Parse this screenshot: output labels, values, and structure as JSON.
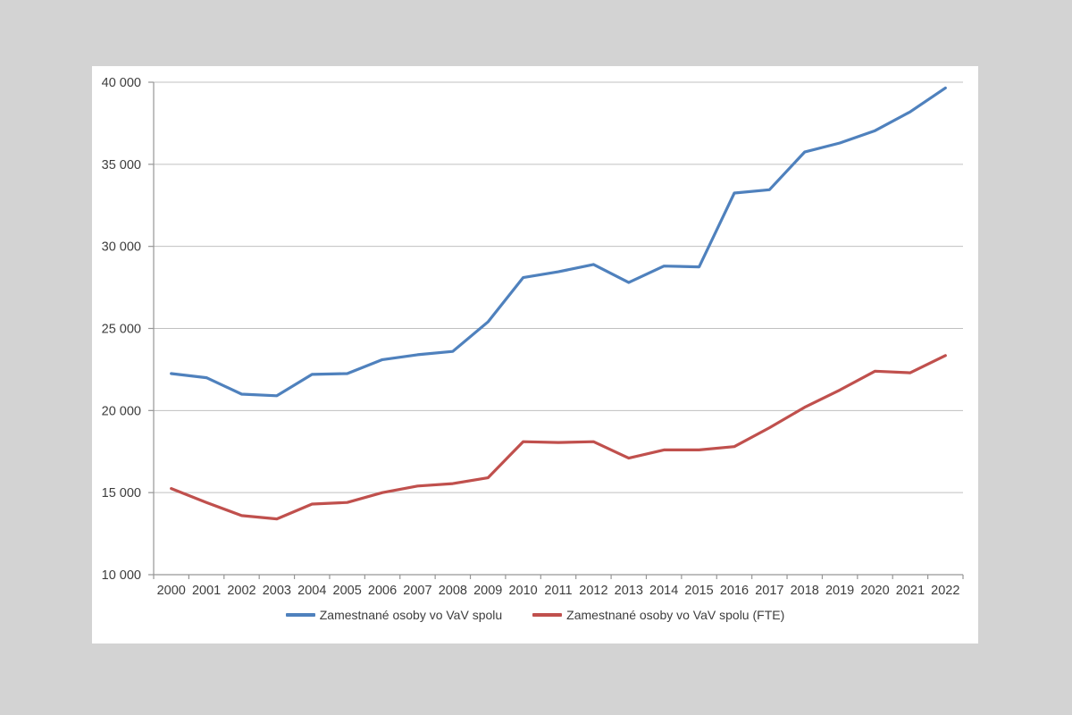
{
  "window": {
    "backdrop_color": "#d3d3d3",
    "panel_color": "#ffffff"
  },
  "chart_data": {
    "type": "line",
    "title": "",
    "xlabel": "",
    "ylabel": "",
    "x": [
      "2000",
      "2001",
      "2002",
      "2003",
      "2004",
      "2005",
      "2006",
      "2007",
      "2008",
      "2009",
      "2010",
      "2011",
      "2012",
      "2013",
      "2014",
      "2015",
      "2016",
      "2017",
      "2018",
      "2019",
      "2020",
      "2021",
      "2022"
    ],
    "series": [
      {
        "name": "Zamestnané osoby vo VaV spolu",
        "color": "#4F81BD",
        "values": [
          22250,
          22000,
          21000,
          20900,
          22200,
          22250,
          23100,
          23400,
          23600,
          25400,
          28100,
          28450,
          28900,
          27800,
          28800,
          28750,
          33250,
          33450,
          35750,
          36300,
          37050,
          38200,
          39650
        ]
      },
      {
        "name": "Zamestnané osoby vo VaV spolu (FTE)",
        "color": "#C0504D",
        "values": [
          15250,
          14400,
          13600,
          13400,
          14300,
          14400,
          15000,
          15400,
          15550,
          15900,
          18100,
          18050,
          18100,
          17100,
          17600,
          17600,
          17800,
          18950,
          20200,
          21250,
          22400,
          22300,
          23350
        ]
      }
    ],
    "ylim": [
      10000,
      40000
    ],
    "ytick_step": 5000,
    "yticks": [
      10000,
      15000,
      20000,
      25000,
      30000,
      35000,
      40000
    ],
    "ytick_labels": [
      "10 000",
      "15 000",
      "20 000",
      "25 000",
      "30 000",
      "35 000",
      "40 000"
    ],
    "grid": true,
    "legend_position": "bottom",
    "style": {
      "grid_color": "#c0c0c0",
      "axis_color": "#969696",
      "tick_text_color": "#3d3d3d",
      "line_width": 3.2
    }
  }
}
